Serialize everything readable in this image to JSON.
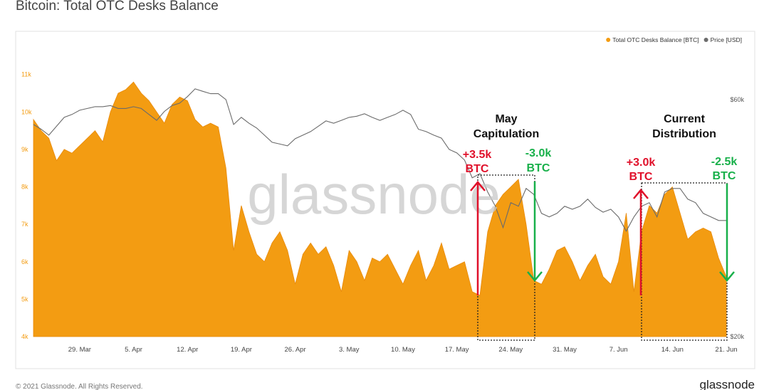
{
  "chart_data": {
    "type": "area",
    "title": "Bitcoin: Total OTC Desks Balance",
    "watermark": "glassnode",
    "footer": "© 2021 Glassnode. All Rights Reserved.",
    "logo": "glassnode",
    "categories": [
      null,
      null,
      null,
      null,
      null,
      null,
      "29. Mar",
      null,
      null,
      null,
      null,
      null,
      null,
      "5. Apr",
      null,
      null,
      null,
      null,
      null,
      null,
      "12. Apr",
      null,
      null,
      null,
      null,
      null,
      null,
      "19. Apr",
      null,
      null,
      null,
      null,
      null,
      null,
      "26. Apr",
      null,
      null,
      null,
      null,
      null,
      null,
      "3. May",
      null,
      null,
      null,
      null,
      null,
      null,
      "10. May",
      null,
      null,
      null,
      null,
      null,
      null,
      "17. May",
      null,
      null,
      null,
      null,
      null,
      null,
      "24. May",
      null,
      null,
      null,
      null,
      null,
      null,
      "31. May",
      null,
      null,
      null,
      null,
      null,
      null,
      "7. Jun",
      null,
      null,
      null,
      null,
      null,
      null,
      "14. Jun",
      null,
      null,
      null,
      null,
      null,
      null,
      "21. Jun"
    ],
    "series": [
      {
        "name": "Total OTC Desks Balance [BTC]",
        "color": "#f39c12",
        "values": [
          9800,
          9500,
          9300,
          8700,
          9000,
          8900,
          9100,
          9300,
          9500,
          9200,
          10000,
          10500,
          10600,
          10800,
          10500,
          10300,
          10000,
          9700,
          10200,
          10400,
          10300,
          9800,
          9600,
          9700,
          9600,
          8500,
          6300,
          7500,
          6800,
          6200,
          6000,
          6500,
          6800,
          6300,
          5400,
          6200,
          6500,
          6200,
          6400,
          5900,
          5200,
          6300,
          6000,
          5500,
          6100,
          6000,
          6200,
          5800,
          5400,
          5900,
          6300,
          5500,
          5900,
          6500,
          5800,
          5900,
          6000,
          5200,
          5100,
          6800,
          7500,
          7800,
          8000,
          8200,
          7000,
          5500,
          5400,
          5800,
          6300,
          6400,
          6000,
          5500,
          5900,
          6200,
          5600,
          5400,
          6000,
          7300,
          5200,
          6800,
          7500,
          7300,
          7800,
          8000,
          7300,
          6600,
          6800,
          6900,
          6800,
          6100,
          5600
        ]
      },
      {
        "name": "Price [USD]",
        "color": "#6b6b6b",
        "axis": "y2",
        "values": [
          55800,
          55000,
          54000,
          55500,
          57000,
          57500,
          58200,
          58500,
          58800,
          58800,
          59000,
          58500,
          58500,
          58800,
          58500,
          57500,
          56500,
          58000,
          59000,
          59400,
          60500,
          61800,
          61400,
          61000,
          61000,
          60000,
          55800,
          57000,
          56000,
          55200,
          54000,
          52800,
          52500,
          52200,
          53400,
          54000,
          54600,
          55500,
          56400,
          56000,
          56500,
          57000,
          57200,
          57600,
          57000,
          56500,
          57000,
          57500,
          58200,
          57500,
          55000,
          54600,
          54000,
          53500,
          51600,
          51000,
          49800,
          46800,
          47500,
          44400,
          42000,
          38400,
          42600,
          42000,
          45000,
          44000,
          40800,
          40200,
          40800,
          42000,
          41500,
          42000,
          43200,
          41800,
          41000,
          41500,
          40200,
          37800,
          40200,
          42000,
          42600,
          40200,
          44400,
          45000,
          45000,
          43200,
          42600,
          40800,
          40200,
          39600,
          39600
        ]
      }
    ],
    "ylim": [
      4000,
      11850
    ],
    "yticks": [
      {
        "value": 4000,
        "label": "4k"
      },
      {
        "value": 5000,
        "label": "5k"
      },
      {
        "value": 6000,
        "label": "6k"
      },
      {
        "value": 7000,
        "label": "7k"
      },
      {
        "value": 8000,
        "label": "8k"
      },
      {
        "value": 9000,
        "label": "9k"
      },
      {
        "value": 10000,
        "label": "10k"
      },
      {
        "value": 11000,
        "label": "11k"
      }
    ],
    "y2lim": [
      20000,
      69600
    ],
    "y2ticks": [
      {
        "value": 20000,
        "label": "$20k"
      },
      {
        "value": 60000,
        "label": "$60k"
      }
    ],
    "annotations": [
      {
        "lines": [
          "May",
          "Capitulation"
        ]
      },
      {
        "lines": [
          "+3.5k",
          "BTC"
        ]
      },
      {
        "lines": [
          "-3.0k",
          "BTC"
        ]
      },
      {
        "lines": [
          "Current",
          "Distribution"
        ]
      },
      {
        "lines": [
          "+3.0k",
          "BTC"
        ]
      },
      {
        "lines": [
          "-2.5k",
          "BTC"
        ]
      }
    ]
  }
}
